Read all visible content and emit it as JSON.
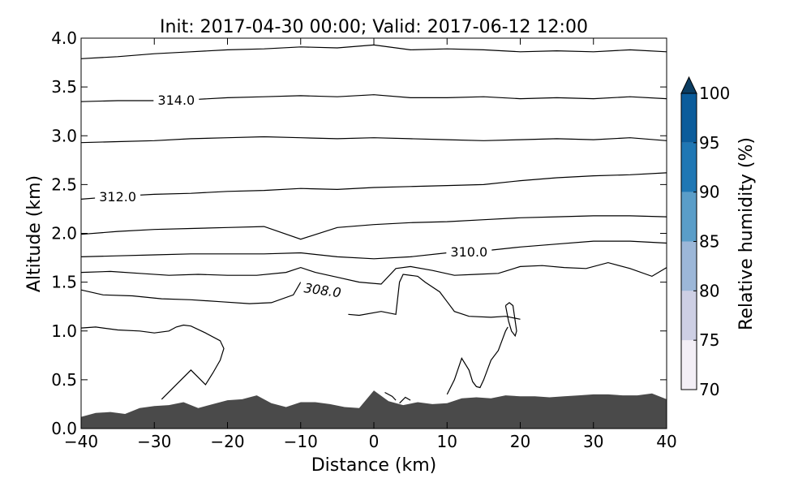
{
  "chart_data": {
    "type": "contour",
    "title": "Init: 2017-04-30 00:00; Valid: 2017-06-12 12:00",
    "xlabel": "Distance (km)",
    "ylabel": "Altitude (km)",
    "xlim": [
      -40,
      40
    ],
    "ylim": [
      0,
      4
    ],
    "x_ticks": [
      -40,
      -30,
      -20,
      -10,
      0,
      10,
      20,
      30,
      40
    ],
    "x_tick_labels": [
      "−40",
      "−30",
      "−20",
      "−10",
      "0",
      "10",
      "20",
      "30",
      "40"
    ],
    "y_ticks": [
      0,
      0.5,
      1,
      1.5,
      2,
      2.5,
      3,
      3.5,
      4
    ],
    "y_tick_labels": [
      "0.0",
      "0.5",
      "1.0",
      "1.5",
      "2.0",
      "2.5",
      "3.0",
      "3.5",
      "4.0"
    ],
    "colorbar": {
      "label": "Relative humidity (%)",
      "levels": [
        70,
        75,
        80,
        85,
        90,
        95,
        100
      ],
      "tick_labels": [
        "70",
        "75",
        "80",
        "85",
        "90",
        "95",
        "100"
      ],
      "colors": [
        "#f3eff6",
        "#cdcfe4",
        "#9cb7d8",
        "#5a9dc8",
        "#1f77b4",
        "#0b5c9b",
        "#0b3d62"
      ],
      "extend": "max"
    },
    "terrain": {
      "color": "#4a4a4a",
      "x": [
        -40,
        -38,
        -36,
        -34,
        -32,
        -30,
        -28,
        -26,
        -24,
        -22,
        -20,
        -18,
        -16,
        -14,
        -12,
        -10,
        -8,
        -6,
        -4,
        -2,
        0,
        2,
        4,
        6,
        8,
        10,
        12,
        14,
        16,
        18,
        20,
        22,
        24,
        26,
        28,
        30,
        32,
        34,
        36,
        38,
        40
      ],
      "y": [
        0.12,
        0.16,
        0.17,
        0.15,
        0.21,
        0.23,
        0.24,
        0.27,
        0.21,
        0.25,
        0.29,
        0.3,
        0.34,
        0.26,
        0.22,
        0.27,
        0.27,
        0.25,
        0.22,
        0.21,
        0.39,
        0.28,
        0.24,
        0.27,
        0.25,
        0.26,
        0.31,
        0.32,
        0.31,
        0.34,
        0.33,
        0.33,
        0.32,
        0.33,
        0.34,
        0.35,
        0.35,
        0.34,
        0.34,
        0.36,
        0.3
      ]
    },
    "contours": [
      {
        "label": "",
        "x": [
          -40,
          -35,
          -30,
          -25,
          -20,
          -15,
          -10,
          -5,
          0,
          5,
          10,
          15,
          20,
          25,
          30,
          35,
          40
        ],
        "y": [
          3.79,
          3.81,
          3.84,
          3.86,
          3.88,
          3.89,
          3.91,
          3.9,
          3.93,
          3.88,
          3.89,
          3.88,
          3.86,
          3.87,
          3.86,
          3.88,
          3.86
        ]
      },
      {
        "label": "314.0",
        "label_at": -27,
        "x": [
          -40,
          -35,
          -30,
          -25,
          -20,
          -15,
          -10,
          -5,
          0,
          5,
          10,
          15,
          20,
          25,
          30,
          35,
          40
        ],
        "y": [
          3.35,
          3.36,
          3.36,
          3.37,
          3.39,
          3.4,
          3.41,
          3.4,
          3.42,
          3.39,
          3.39,
          3.4,
          3.38,
          3.39,
          3.38,
          3.4,
          3.38
        ]
      },
      {
        "label": "",
        "x": [
          -40,
          -35,
          -30,
          -25,
          -20,
          -15,
          -10,
          -5,
          0,
          5,
          10,
          15,
          20,
          25,
          30,
          35,
          40
        ],
        "y": [
          2.93,
          2.94,
          2.95,
          2.97,
          2.98,
          2.99,
          2.98,
          2.97,
          2.98,
          2.97,
          2.96,
          2.95,
          2.96,
          2.97,
          2.96,
          2.98,
          2.95
        ]
      },
      {
        "label": "312.0",
        "label_at": -35,
        "x": [
          -40,
          -35,
          -30,
          -25,
          -20,
          -15,
          -10,
          -5,
          0,
          5,
          10,
          15,
          20,
          25,
          30,
          35,
          40
        ],
        "y": [
          2.35,
          2.38,
          2.4,
          2.41,
          2.43,
          2.44,
          2.46,
          2.45,
          2.47,
          2.48,
          2.49,
          2.5,
          2.54,
          2.57,
          2.59,
          2.6,
          2.62
        ]
      },
      {
        "label": "",
        "x": [
          -40,
          -35,
          -30,
          -25,
          -20,
          -15,
          -10,
          -5,
          0,
          5,
          10,
          15,
          20,
          25,
          30,
          35,
          40
        ],
        "y": [
          1.99,
          2.02,
          2.04,
          2.05,
          2.06,
          2.07,
          1.94,
          2.06,
          2.09,
          2.11,
          2.12,
          2.14,
          2.16,
          2.17,
          2.18,
          2.18,
          2.17
        ]
      },
      {
        "label": "310.0",
        "label_at": 13,
        "x": [
          -40,
          -35,
          -30,
          -25,
          -20,
          -15,
          -10,
          -5,
          0,
          5,
          10,
          15,
          20,
          25,
          30,
          35,
          40
        ],
        "y": [
          1.76,
          1.77,
          1.78,
          1.79,
          1.79,
          1.79,
          1.8,
          1.76,
          1.74,
          1.76,
          1.8,
          1.82,
          1.86,
          1.89,
          1.92,
          1.92,
          1.9
        ]
      },
      {
        "label": "",
        "x": [
          -40,
          -36,
          -32,
          -28,
          -24,
          -20,
          -16,
          -12,
          -10,
          -8,
          -5,
          -2,
          1,
          3,
          5,
          8,
          11,
          14,
          17,
          20,
          23,
          26,
          29,
          32,
          35,
          38,
          40
        ],
        "y": [
          1.6,
          1.61,
          1.59,
          1.57,
          1.58,
          1.57,
          1.57,
          1.6,
          1.65,
          1.6,
          1.55,
          1.5,
          1.48,
          1.64,
          1.66,
          1.62,
          1.57,
          1.58,
          1.59,
          1.66,
          1.67,
          1.65,
          1.64,
          1.7,
          1.64,
          1.56,
          1.65
        ]
      },
      {
        "label": "308.0",
        "label_at": -7,
        "label_angle": 8,
        "x": [
          -40,
          -37,
          -33,
          -29,
          -25,
          -21,
          -17,
          -14,
          -11,
          -10
        ],
        "y": [
          1.42,
          1.37,
          1.36,
          1.33,
          1.32,
          1.3,
          1.28,
          1.29,
          1.37,
          1.5
        ]
      },
      {
        "label": "",
        "x": [
          -3.5,
          -2,
          1,
          3,
          3.5,
          4,
          6,
          7,
          9,
          10,
          11,
          13,
          16,
          18,
          20
        ],
        "y": [
          1.17,
          1.16,
          1.2,
          1.17,
          1.5,
          1.58,
          1.56,
          1.5,
          1.4,
          1.3,
          1.2,
          1.15,
          1.14,
          1.15,
          1.12
        ]
      },
      {
        "label": "",
        "x": [
          -40,
          -38,
          -35,
          -32,
          -30,
          -28,
          -27,
          -26,
          -25,
          -23,
          -21,
          -20.5,
          -21,
          -22,
          -23,
          -25,
          -27,
          -29
        ],
        "y": [
          1.03,
          1.04,
          1.01,
          1.0,
          0.98,
          1.0,
          1.04,
          1.06,
          1.05,
          0.98,
          0.9,
          0.82,
          0.7,
          0.57,
          0.45,
          0.6,
          0.45,
          0.3
        ]
      },
      {
        "label": "",
        "x": [
          10,
          11,
          12,
          13,
          13.5,
          14,
          14.5,
          15,
          16,
          17,
          17.5,
          18,
          18.3
        ],
        "y": [
          0.35,
          0.5,
          0.72,
          0.6,
          0.48,
          0.43,
          0.42,
          0.5,
          0.7,
          0.8,
          0.9,
          1.0,
          1.04
        ]
      },
      {
        "label": "",
        "x": [
          18,
          18.5,
          19,
          19.5,
          19.3,
          18.8,
          18.4,
          18
        ],
        "y": [
          1.26,
          1.29,
          1.26,
          1.0,
          0.95,
          1.0,
          1.1,
          1.26
        ]
      },
      {
        "label": "",
        "x": [
          1.5,
          2.5,
          3
        ],
        "y": [
          0.37,
          0.33,
          0.29
        ]
      },
      {
        "label": "",
        "x": [
          3.5,
          4.3,
          5
        ],
        "y": [
          0.26,
          0.32,
          0.29
        ]
      }
    ]
  }
}
